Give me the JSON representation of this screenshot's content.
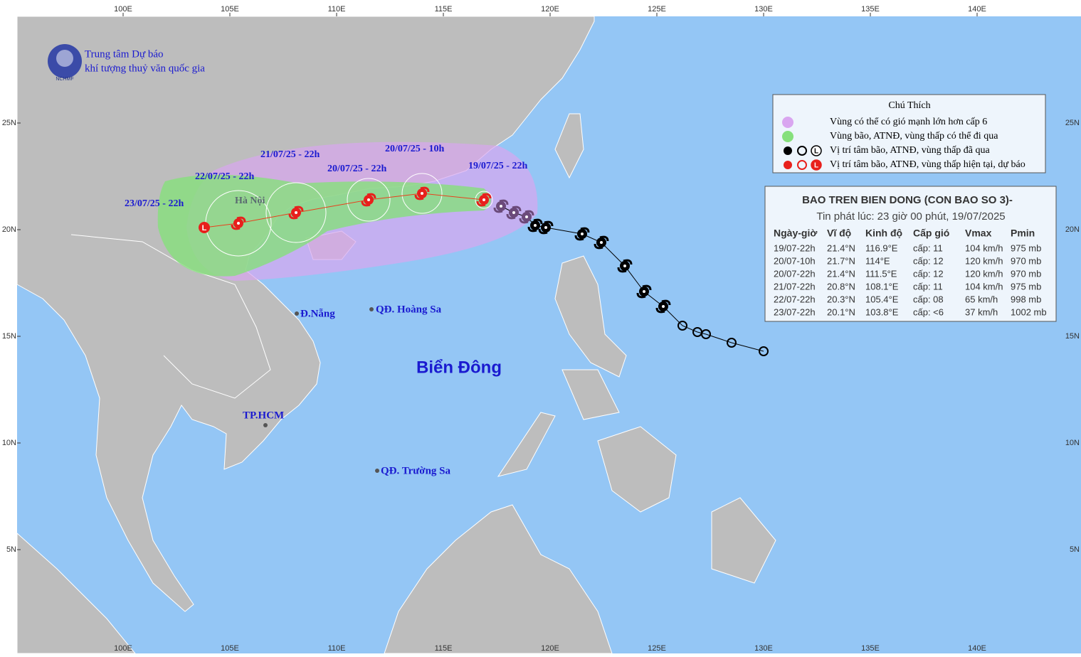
{
  "header": {
    "line1": "Trung tâm Dự báo",
    "line2": "khí tượng thuỷ văn quốc gia",
    "logo_text": "NCHMF"
  },
  "map": {
    "lon_ticks": [
      {
        "value": 100,
        "label": "100E"
      },
      {
        "value": 105,
        "label": "105E"
      },
      {
        "value": 110,
        "label": "110E"
      },
      {
        "value": 115,
        "label": "115E"
      },
      {
        "value": 120,
        "label": "120E"
      },
      {
        "value": 125,
        "label": "125E"
      },
      {
        "value": 130,
        "label": "130E"
      },
      {
        "value": 135,
        "label": "135E"
      },
      {
        "value": 140,
        "label": "140E"
      }
    ],
    "lat_ticks": [
      {
        "value": 25,
        "label": "25N"
      },
      {
        "value": 20,
        "label": "20N"
      },
      {
        "value": 15,
        "label": "15N"
      },
      {
        "value": 10,
        "label": "10N"
      },
      {
        "value": 5,
        "label": "5N"
      }
    ],
    "past_track": {
      "lon": [
        130.0,
        128.5,
        127.3,
        126.9,
        126.2,
        125.3,
        124.4,
        123.5,
        122.4,
        121.5,
        119.8,
        119.3,
        118.9,
        118.3,
        117.7
      ],
      "lat": [
        14.3,
        14.7,
        15.1,
        15.2,
        15.5,
        16.4,
        17.1,
        18.3,
        19.4,
        19.8,
        20.1,
        20.2,
        20.6,
        20.8,
        21.1
      ]
    },
    "forecast_track": {
      "labels": [
        "19/07/25 - 22h",
        "20/07/25 - 10h",
        "20/07/25 - 22h",
        "21/07/25 - 22h",
        "22/07/25 - 22h",
        "23/07/25 - 22h"
      ],
      "lon": [
        116.9,
        114,
        111.5,
        108.1,
        105.4,
        103.8
      ],
      "lat": [
        21.4,
        21.7,
        21.4,
        20.8,
        20.3,
        20.1
      ]
    },
    "low_symbol": "L",
    "places": [
      "Hà Nội",
      "Đ.Nẵng",
      "QĐ. Hoàng Sa",
      "TP.HCM",
      "QĐ. Trường Sa",
      "Biển Đông"
    ]
  },
  "legend": {
    "title": "Chú Thích",
    "items": [
      "Vùng có thể có gió mạnh lớn hơn cấp 6",
      "Vùng bão, ATNĐ, vùng thấp có thể đi qua",
      "Vị trí tâm bão, ATNĐ, vùng thấp đã qua",
      "Vị trí tâm bão, ATNĐ, vùng thấp hiện tại, dự báo"
    ]
  },
  "info": {
    "title": "BAO TREN BIEN DONG (CON BAO SO 3)-",
    "subtitle": "Tin phát lúc: 23 giờ 00 phút, 19/07/2025",
    "table": {
      "header": [
        "Ngày-giờ",
        "Vĩ độ",
        "Kinh độ",
        "Cấp gió",
        "Vmax",
        "Pmin"
      ],
      "rows": [
        [
          "19/07-22h",
          "21.4°N",
          "116.9°E",
          "cấp: 11",
          "104 km/h",
          "975 mb"
        ],
        [
          "20/07-10h",
          "21.7°N",
          "114°E",
          "cấp: 12",
          "120 km/h",
          "970 mb"
        ],
        [
          "20/07-22h",
          "21.4°N",
          "111.5°E",
          "cấp: 12",
          "120 km/h",
          "970 mb"
        ],
        [
          "21/07-22h",
          "20.8°N",
          "108.1°E",
          "cấp: 11",
          "104 km/h",
          "975 mb"
        ],
        [
          "22/07-22h",
          "20.3°N",
          "105.4°E",
          "cấp: 08",
          "65 km/h",
          "998 mb"
        ],
        [
          "23/07-22h",
          "20.1°N",
          "103.8°E",
          "cấp: <6",
          "37 km/h",
          "1002 mb"
        ]
      ]
    }
  }
}
